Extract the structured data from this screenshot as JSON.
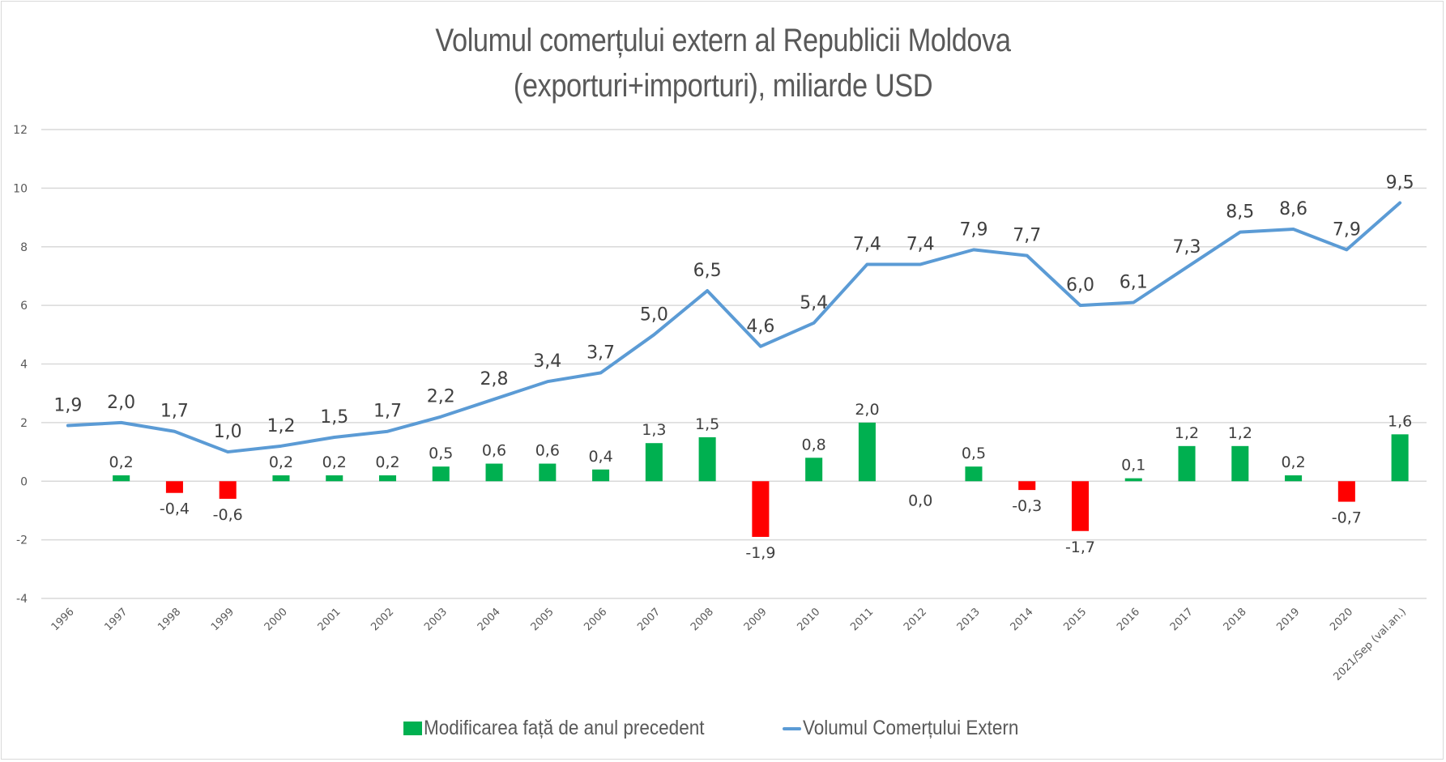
{
  "chart_data": {
    "type": "bar+line",
    "title_lines": [
      "Volumul comerțului extern al Republicii Moldova",
      "(exporturi+importuri), miliarde USD"
    ],
    "xlabel": "",
    "ylabel": "",
    "ylim": [
      -4,
      12
    ],
    "yticks": [
      12,
      10,
      8,
      6,
      4,
      2,
      0,
      -2,
      -4
    ],
    "grid": true,
    "legend_position": "bottom",
    "categories": [
      "1996",
      "1997",
      "1998",
      "1999",
      "2000",
      "2001",
      "2002",
      "2003",
      "2004",
      "2005",
      "2006",
      "2007",
      "2008",
      "2009",
      "2010",
      "2011",
      "2012",
      "2013",
      "2014",
      "2015",
      "2016",
      "2017",
      "2018",
      "2019",
      "2020",
      "2021/Sep (val.an.)"
    ],
    "series": [
      {
        "name": "Modificarea față de anul precedent",
        "type": "bar",
        "color": "#00b050",
        "negative_color": "#ff0000",
        "values": [
          null,
          0.2,
          -0.4,
          -0.6,
          0.2,
          0.2,
          0.2,
          0.5,
          0.6,
          0.6,
          0.4,
          1.3,
          1.5,
          -1.9,
          0.8,
          2.0,
          0.0,
          0.5,
          -0.3,
          -1.7,
          0.1,
          1.2,
          1.2,
          0.2,
          -0.7,
          1.6
        ],
        "labels": [
          null,
          "0,2",
          "-0,4",
          "-0,6",
          "0,2",
          "0,2",
          "0,2",
          "0,5",
          "0,6",
          "0,6",
          "0,4",
          "1,3",
          "1,5",
          "-1,9",
          "0,8",
          "2,0",
          "0,0",
          "0,5",
          "-0,3",
          "-1,7",
          "0,1",
          "1,2",
          "1,2",
          "0,2",
          "-0,7",
          "1,6"
        ]
      },
      {
        "name": "Volumul Comerțului Extern",
        "type": "line",
        "color": "#5b9bd5",
        "values": [
          1.9,
          2.0,
          1.7,
          1.0,
          1.2,
          1.5,
          1.7,
          2.2,
          2.8,
          3.4,
          3.7,
          5.0,
          6.5,
          4.6,
          5.4,
          7.4,
          7.4,
          7.9,
          7.7,
          6.0,
          6.1,
          7.3,
          8.5,
          8.6,
          7.9,
          9.5
        ],
        "labels": [
          "1,9",
          "2,0",
          "1,7",
          "1,0",
          "1,2",
          "1,5",
          "1,7",
          "2,2",
          "2,8",
          "3,4",
          "3,7",
          "5,0",
          "6,5",
          "4,6",
          "5,4",
          "7,4",
          "7,4",
          "7,9",
          "7,7",
          "6,0",
          "6,1",
          "7,3",
          "8,5",
          "8,6",
          "7,9",
          "9,5"
        ]
      }
    ]
  }
}
